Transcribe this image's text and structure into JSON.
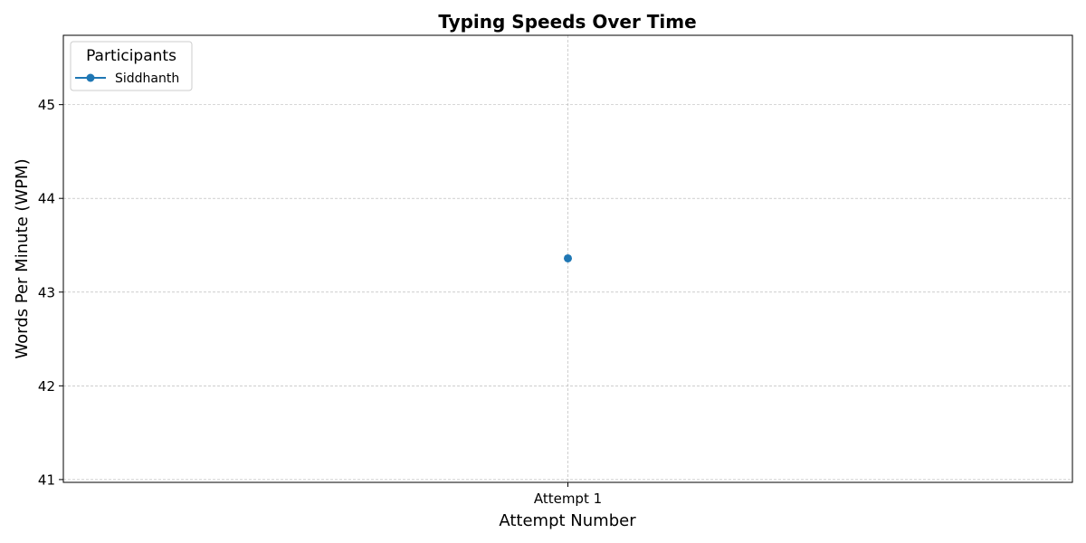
{
  "chart_data": {
    "type": "line",
    "title": "Typing Speeds Over Time",
    "xlabel": "Attempt Number",
    "ylabel": "Words Per Minute (WPM)",
    "categories": [
      "Attempt 1"
    ],
    "ylim": [
      40.97,
      45.74
    ],
    "yticks": [
      "41",
      "42",
      "43",
      "44",
      "45"
    ],
    "grid": true,
    "legend": {
      "title": "Participants",
      "placement": "top-left"
    },
    "series": [
      {
        "name": "Siddhanth",
        "color": "#1f77b4",
        "values": [
          43.36
        ]
      }
    ]
  }
}
